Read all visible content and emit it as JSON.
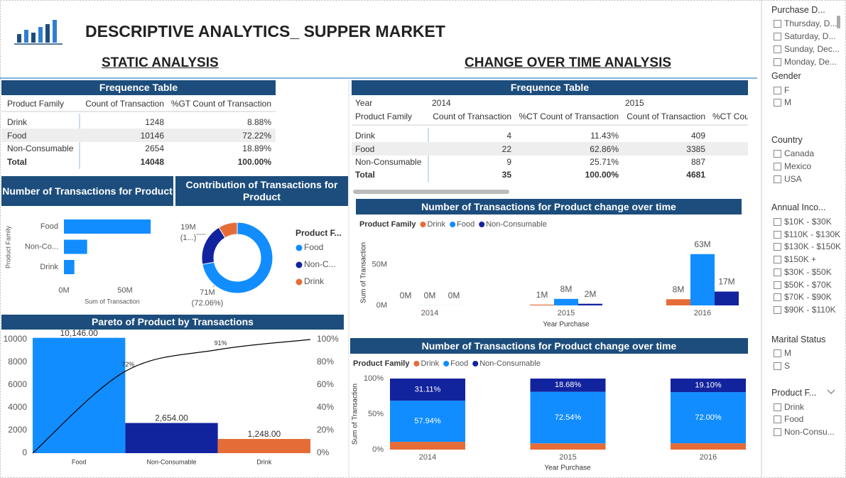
{
  "header": {
    "title": "DESCRIPTIVE ANALYTICS_ SUPPER MARKET",
    "static": "STATIC ANALYSIS",
    "change": "CHANGE OVER TIME ANALYSIS"
  },
  "static_table": {
    "title": "Frequence Table",
    "columns": [
      "Product Family",
      "Count of Transaction",
      "%GT Count of Transaction"
    ],
    "rows": [
      [
        "Drink",
        1248,
        "8.88%"
      ],
      [
        "Food",
        10146,
        "72.22%"
      ],
      [
        "Non-Consumable",
        2654,
        "18.89%"
      ]
    ],
    "total": [
      "Total",
      14048,
      "100.00%"
    ]
  },
  "time_table": {
    "title": "Frequence Table",
    "year_label": "Year",
    "years": [
      "2014",
      "2015"
    ],
    "columns": [
      "Product Family",
      "Count of Transaction",
      "%CT Count of Transaction",
      "Count of Transaction",
      "%CT Cou"
    ],
    "rows": [
      [
        "Drink",
        4,
        "11.43%",
        409
      ],
      [
        "Food",
        22,
        "62.86%",
        3385
      ],
      [
        "Non-Consumable",
        9,
        "25.71%",
        887
      ]
    ],
    "total": [
      "Total",
      35,
      "100.00%",
      4681
    ]
  },
  "chart_data": [
    {
      "type": "bar",
      "horizontal": true,
      "title": "Number of Transactions for Product",
      "categories": [
        "Food",
        "Non-Co...",
        "Drink"
      ],
      "values": [
        71000000,
        19000000,
        8530000
      ],
      "color": "#118DFF",
      "xlim": [
        0,
        75000000
      ],
      "xticks": [
        {
          "value": 0,
          "label": "0M"
        },
        {
          "value": 50000000,
          "label": "50M"
        }
      ],
      "x_label": "Sum of Transaction",
      "y_label": "Product Family"
    },
    {
      "type": "donut",
      "title": "Contribution of Transactions for Product",
      "legend_title": "Product F...",
      "categories": [
        "Food",
        "Non-C...",
        "Drink"
      ],
      "values": [
        71000000,
        19000000,
        8530000
      ],
      "colors": [
        "#118DFF",
        "#12239E",
        "#E66C37"
      ],
      "value_labels": [
        [
          "71M",
          "(72.06%)"
        ],
        [
          "19M",
          "(1...)"
        ],
        null
      ]
    },
    {
      "type": "combo",
      "title": "Pareto of Product by Transactions",
      "categories": [
        "Food",
        "Non-Consumable",
        "Drink"
      ],
      "series": [
        {
          "type": "bar",
          "colors": [
            "#118DFF",
            "#12239E",
            "#E66C37"
          ],
          "values": [
            10146,
            2654,
            1248
          ],
          "value_labels": [
            "10,146.00",
            "2,654.00",
            "1,248.00"
          ]
        },
        {
          "type": "line",
          "axis": "y2",
          "color": "#000000",
          "values": [
            72,
            91,
            100
          ],
          "value_labels": [
            "72%",
            "91%",
            null
          ]
        }
      ],
      "ylim": [
        0,
        10146
      ],
      "yticks": [
        0,
        2000,
        4000,
        6000,
        8000,
        10000
      ],
      "y2lim": [
        0,
        100
      ],
      "y2ticks": [
        {
          "value": 0,
          "label": "0%"
        },
        {
          "value": 20,
          "label": "20%"
        },
        {
          "value": 40,
          "label": "40%"
        },
        {
          "value": 60,
          "label": "60%"
        },
        {
          "value": 80,
          "label": "80%"
        },
        {
          "value": 100,
          "label": "100%"
        }
      ]
    },
    {
      "type": "column",
      "title": "Number of Transactions for Product change over time",
      "legend_title": "Product Family",
      "categories": [
        "2014",
        "2015",
        "2016"
      ],
      "series": [
        {
          "name": "Drink",
          "color": "#E66C37",
          "values": [
            10000,
            1000000,
            7600000
          ],
          "value_labels": [
            "0M",
            "1M",
            "8M"
          ]
        },
        {
          "name": "Food",
          "color": "#118DFF",
          "values": [
            60000,
            8000000,
            63000000
          ],
          "value_labels": [
            "0M",
            "8M",
            "63M"
          ]
        },
        {
          "name": "Non-Consumable",
          "color": "#12239E",
          "values": [
            30000,
            2000000,
            17000000
          ],
          "value_labels": [
            "0M",
            "2M",
            "17M"
          ]
        }
      ],
      "ylim": [
        0,
        75000000
      ],
      "yticks": [
        {
          "value": 0,
          "label": "0M"
        },
        {
          "value": 50000000,
          "label": "50M"
        }
      ],
      "x_label": "Year Purchase",
      "y_label": "Sum of Transaction"
    },
    {
      "type": "stacked100",
      "title": "Number of Transactions for Product change over time",
      "legend_title": "Product Family",
      "categories": [
        "2014",
        "2015",
        "2016"
      ],
      "series": [
        {
          "name": "Drink",
          "color": "#E66C37",
          "values": [
            10.95,
            8.78,
            8.9
          ],
          "value_labels": [
            null,
            null,
            null
          ]
        },
        {
          "name": "Food",
          "color": "#118DFF",
          "values": [
            57.94,
            72.54,
            72.0
          ],
          "value_labels": [
            "57.94%",
            "72.54%",
            "72.00%"
          ]
        },
        {
          "name": "Non-Consumable",
          "color": "#12239E",
          "values": [
            31.11,
            18.68,
            19.1
          ],
          "value_labels": [
            "31.11%",
            "18.68%",
            "19.10%"
          ]
        }
      ],
      "ylim": [
        0,
        100
      ],
      "yticks": [
        {
          "value": 0,
          "label": "0%"
        },
        {
          "value": 50,
          "label": "50%"
        },
        {
          "value": 100,
          "label": "100%"
        }
      ],
      "x_label": "Year Purchase",
      "y_label": "Sum of Transaction"
    }
  ],
  "slicers": [
    {
      "title": "Purchase D...",
      "items": [
        "Thursday, D...",
        "Saturday, D...",
        "Sunday, Dec...",
        "Monday, De..."
      ]
    },
    {
      "title": "Gender",
      "items": [
        "F",
        "M"
      ]
    },
    {
      "title": "Country",
      "items": [
        "Canada",
        "Mexico",
        "USA"
      ]
    },
    {
      "title": "Annual Inco...",
      "items": [
        "$10K - $30K",
        "$110K - $130K",
        "$130K - $150K",
        "$150K +",
        "$30K - $50K",
        "$50K - $70K",
        "$70K - $90K",
        "$90K - $110K"
      ]
    },
    {
      "title": "Marital Status",
      "items": [
        "M",
        "S"
      ]
    },
    {
      "title": "Product F...",
      "items": [
        "Drink",
        "Food",
        "Non-Consu..."
      ]
    }
  ]
}
